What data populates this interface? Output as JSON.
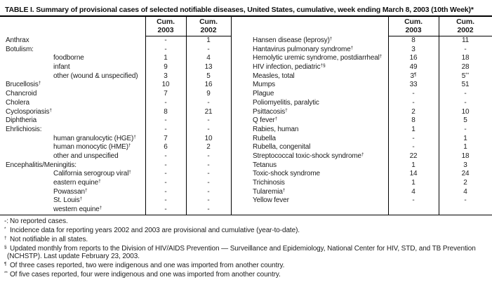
{
  "title": "TABLE I. Summary of provisional cases of selected notifiable diseases, United States, cumulative, week ending March 8, 2003 (10th Week)*",
  "col_headers": {
    "cum": "Cum.",
    "y2003": "2003",
    "y2002": "2002"
  },
  "left_table": {
    "rows": [
      {
        "label": "Anthrax",
        "sup": "",
        "indent": false,
        "v2003": "-",
        "s2003": "",
        "v2002": "1",
        "s2002": ""
      },
      {
        "label": "Botulism:",
        "sup": "",
        "indent": false,
        "v2003": "-",
        "s2003": "",
        "v2002": "-",
        "s2002": ""
      },
      {
        "label": "foodborne",
        "sup": "",
        "indent": true,
        "v2003": "1",
        "s2003": "",
        "v2002": "4",
        "s2002": ""
      },
      {
        "label": "infant",
        "sup": "",
        "indent": true,
        "v2003": "9",
        "s2003": "",
        "v2002": "13",
        "s2002": ""
      },
      {
        "label": "other (wound & unspecified)",
        "sup": "",
        "indent": true,
        "v2003": "3",
        "s2003": "",
        "v2002": "5",
        "s2002": ""
      },
      {
        "label": "Brucellosis",
        "sup": "†",
        "indent": false,
        "v2003": "10",
        "s2003": "",
        "v2002": "16",
        "s2002": ""
      },
      {
        "label": "Chancroid",
        "sup": "",
        "indent": false,
        "v2003": "7",
        "s2003": "",
        "v2002": "9",
        "s2002": ""
      },
      {
        "label": "Cholera",
        "sup": "",
        "indent": false,
        "v2003": "-",
        "s2003": "",
        "v2002": "-",
        "s2002": ""
      },
      {
        "label": "Cyclosporiasis",
        "sup": "†",
        "indent": false,
        "v2003": "8",
        "s2003": "",
        "v2002": "21",
        "s2002": ""
      },
      {
        "label": "Diphtheria",
        "sup": "",
        "indent": false,
        "v2003": "-",
        "s2003": "",
        "v2002": "-",
        "s2002": ""
      },
      {
        "label": "Ehrlichiosis:",
        "sup": "",
        "indent": false,
        "v2003": "-",
        "s2003": "",
        "v2002": "-",
        "s2002": ""
      },
      {
        "label": "human granulocytic (HGE)",
        "sup": "†",
        "indent": true,
        "v2003": "7",
        "s2003": "",
        "v2002": "10",
        "s2002": ""
      },
      {
        "label": "human monocytic (HME)",
        "sup": "†",
        "indent": true,
        "v2003": "6",
        "s2003": "",
        "v2002": "2",
        "s2002": ""
      },
      {
        "label": "other and unspecified",
        "sup": "",
        "indent": true,
        "v2003": "-",
        "s2003": "",
        "v2002": "-",
        "s2002": ""
      },
      {
        "label": "Encephalitis/Meningitis:",
        "sup": "",
        "indent": false,
        "v2003": "-",
        "s2003": "",
        "v2002": "-",
        "s2002": ""
      },
      {
        "label": "California serogroup viral",
        "sup": "†",
        "indent": true,
        "v2003": "-",
        "s2003": "",
        "v2002": "-",
        "s2002": ""
      },
      {
        "label": "eastern equine",
        "sup": "†",
        "indent": true,
        "v2003": "-",
        "s2003": "",
        "v2002": "-",
        "s2002": ""
      },
      {
        "label": "Powassan",
        "sup": "†",
        "indent": true,
        "v2003": "-",
        "s2003": "",
        "v2002": "-",
        "s2002": ""
      },
      {
        "label": "St. Louis",
        "sup": "†",
        "indent": true,
        "v2003": "-",
        "s2003": "",
        "v2002": "-",
        "s2002": ""
      },
      {
        "label": "western equine",
        "sup": "†",
        "indent": true,
        "v2003": "-",
        "s2003": "",
        "v2002": "-",
        "s2002": ""
      }
    ]
  },
  "right_table": {
    "rows": [
      {
        "label": "Hansen disease (leprosy)",
        "sup": "†",
        "indent": false,
        "v2003": "8",
        "s2003": "",
        "v2002": "11",
        "s2002": ""
      },
      {
        "label": "Hantavirus pulmonary syndrome",
        "sup": "†",
        "indent": false,
        "v2003": "3",
        "s2003": "",
        "v2002": "-",
        "s2002": ""
      },
      {
        "label": "Hemolytic uremic syndrome, postdiarrheal",
        "sup": "†",
        "indent": false,
        "v2003": "16",
        "s2003": "",
        "v2002": "18",
        "s2002": ""
      },
      {
        "label": "HIV infection, pediatric",
        "sup": "†§",
        "indent": false,
        "v2003": "49",
        "s2003": "",
        "v2002": "28",
        "s2002": ""
      },
      {
        "label": "Measles, total",
        "sup": "",
        "indent": false,
        "v2003": "3",
        "s2003": "¶",
        "v2002": "5",
        "s2002": "**"
      },
      {
        "label": "Mumps",
        "sup": "",
        "indent": false,
        "v2003": "33",
        "s2003": "",
        "v2002": "51",
        "s2002": ""
      },
      {
        "label": "Plague",
        "sup": "",
        "indent": false,
        "v2003": "-",
        "s2003": "",
        "v2002": "-",
        "s2002": ""
      },
      {
        "label": "Poliomyelitis, paralytic",
        "sup": "",
        "indent": false,
        "v2003": "-",
        "s2003": "",
        "v2002": "-",
        "s2002": ""
      },
      {
        "label": "Psittacosis",
        "sup": "†",
        "indent": false,
        "v2003": "2",
        "s2003": "",
        "v2002": "10",
        "s2002": ""
      },
      {
        "label": "Q fever",
        "sup": "†",
        "indent": false,
        "v2003": "8",
        "s2003": "",
        "v2002": "5",
        "s2002": ""
      },
      {
        "label": "Rabies, human",
        "sup": "",
        "indent": false,
        "v2003": "1",
        "s2003": "",
        "v2002": "-",
        "s2002": ""
      },
      {
        "label": "Rubella",
        "sup": "",
        "indent": false,
        "v2003": "-",
        "s2003": "",
        "v2002": "1",
        "s2002": ""
      },
      {
        "label": "Rubella, congenital",
        "sup": "",
        "indent": false,
        "v2003": "-",
        "s2003": "",
        "v2002": "1",
        "s2002": ""
      },
      {
        "label": "Streptococcal toxic-shock syndrome",
        "sup": "†",
        "indent": false,
        "v2003": "22",
        "s2003": "",
        "v2002": "18",
        "s2002": ""
      },
      {
        "label": "Tetanus",
        "sup": "",
        "indent": false,
        "v2003": "1",
        "s2003": "",
        "v2002": "3",
        "s2002": ""
      },
      {
        "label": "Toxic-shock syndrome",
        "sup": "",
        "indent": false,
        "v2003": "14",
        "s2003": "",
        "v2002": "24",
        "s2002": ""
      },
      {
        "label": "Trichinosis",
        "sup": "",
        "indent": false,
        "v2003": "1",
        "s2003": "",
        "v2002": "2",
        "s2002": ""
      },
      {
        "label": "Tularemia",
        "sup": "†",
        "indent": false,
        "v2003": "4",
        "s2003": "",
        "v2002": "4",
        "s2002": ""
      },
      {
        "label": "Yellow fever",
        "sup": "",
        "indent": false,
        "v2003": "-",
        "s2003": "",
        "v2002": "-",
        "s2002": ""
      },
      {
        "label": "",
        "sup": "",
        "indent": false,
        "v2003": "",
        "s2003": "",
        "v2002": "",
        "s2002": ""
      }
    ]
  },
  "footnotes": [
    {
      "marker": "-:",
      "raised": false,
      "cont": false,
      "text": "No reported cases."
    },
    {
      "marker": "*",
      "raised": true,
      "cont": false,
      "text": "Incidence data for reporting years 2002 and 2003 are provisional and cumulative (year-to-date)."
    },
    {
      "marker": "†",
      "raised": true,
      "cont": false,
      "text": "Not notifiable in all states."
    },
    {
      "marker": "§",
      "raised": true,
      "cont": false,
      "text": "Updated monthly from reports to the Division of HIV/AIDS Prevention — Surveillance and Epidemiology, National Center for HIV, STD, and TB Prevention"
    },
    {
      "marker": "",
      "raised": false,
      "cont": true,
      "text": "(NCHSTP). Last update February 23, 2003."
    },
    {
      "marker": "¶",
      "raised": true,
      "cont": false,
      "text": "Of three cases reported, two were indigenous and one was imported from another country."
    },
    {
      "marker": "**",
      "raised": true,
      "cont": false,
      "text": "Of five cases reported, four were indigenous and one was imported from another country."
    }
  ],
  "colors": {
    "text": "#1c1c1c",
    "rule": "#000000",
    "background": "#ffffff"
  }
}
